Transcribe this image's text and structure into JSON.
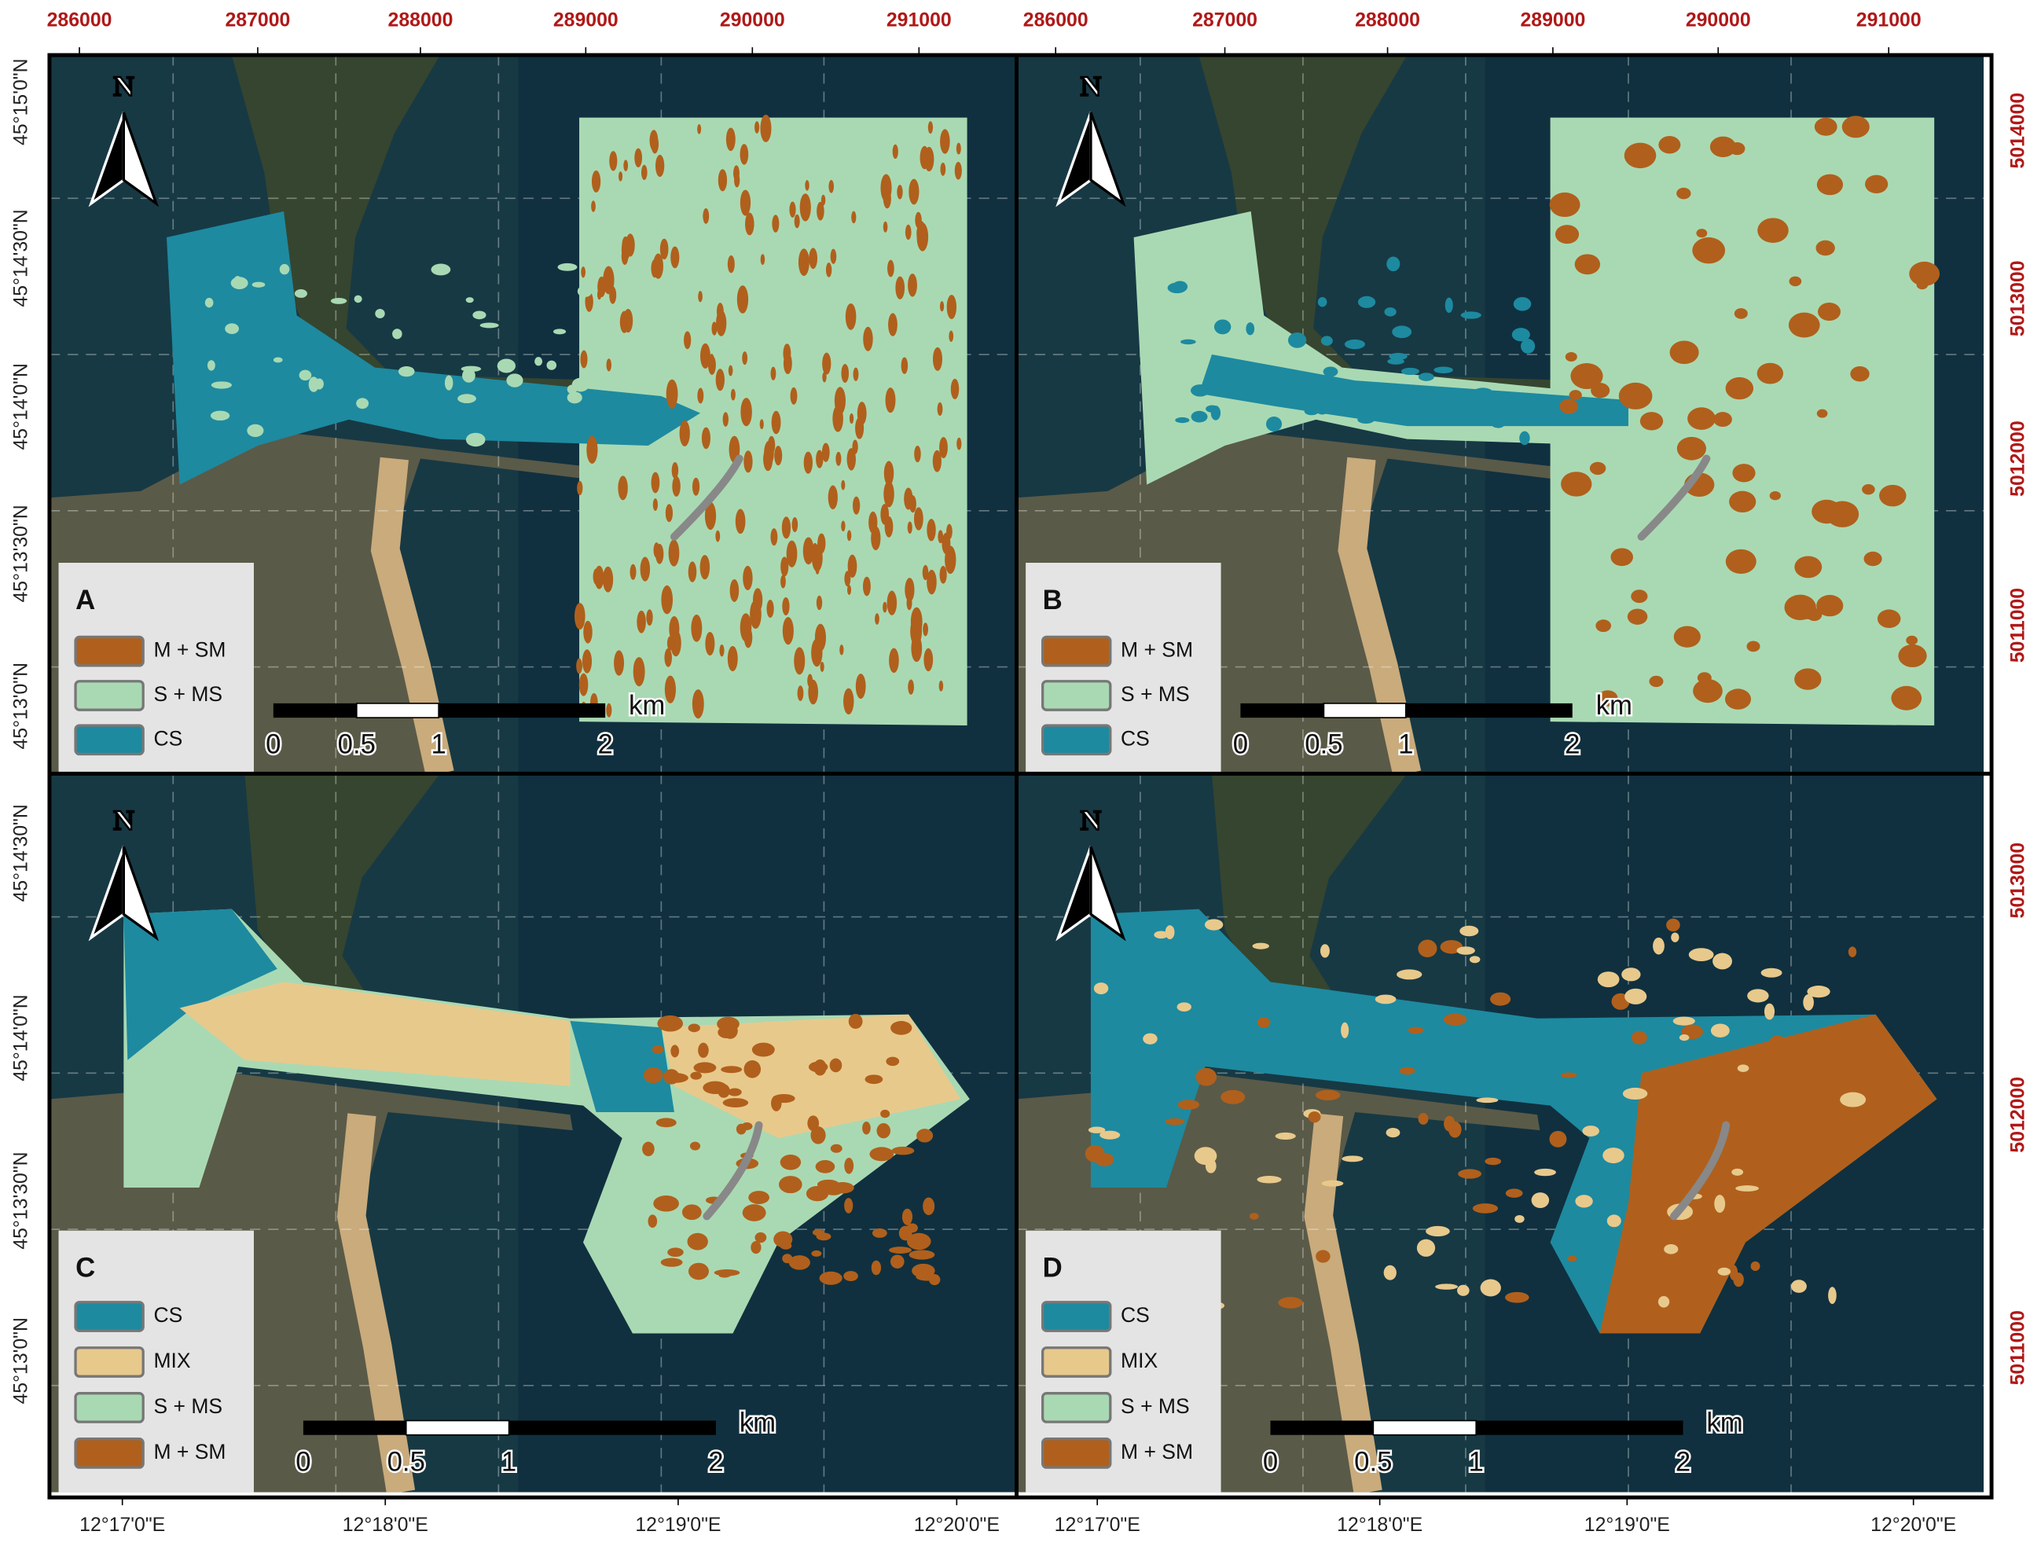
{
  "axis_labels": {
    "top_left": [
      "286000",
      "287000",
      "288000",
      "289000",
      "290000",
      "291000"
    ],
    "top_right": [
      "286000",
      "287000",
      "288000",
      "289000",
      "290000",
      "291000"
    ],
    "left_upper": [
      "45°15'0\"N",
      "45°14'30\"N",
      "45°14'0\"N",
      "45°13'30\"N",
      "45°13'0\"N"
    ],
    "left_lower": [
      "45°14'30\"N",
      "45°14'0\"N",
      "45°13'30\"N",
      "45°13'0\"N"
    ],
    "right_upper": [
      "5014000",
      "5013000",
      "5012000",
      "5011000"
    ],
    "right_lower": [
      "5013000",
      "5012000",
      "5011000"
    ],
    "bottom_left": [
      "12°17'0\"E",
      "12°18'0\"E",
      "12°19'0\"E",
      "12°20'0\"E"
    ],
    "bottom_right": [
      "12°17'0\"E",
      "12°18'0\"E",
      "12°19'0\"E",
      "12°20'0\"E"
    ]
  },
  "panels": [
    {
      "letter": "A",
      "north": "N",
      "scale_ticks": [
        "0",
        "0.5",
        "1",
        "2"
      ],
      "scale_unit": "km",
      "legend": [
        {
          "label": "M + SM",
          "color": "#b0601c"
        },
        {
          "label": "S + MS",
          "color": "#a9d9b3"
        },
        {
          "label": "CS",
          "color": "#1d8aa0"
        }
      ]
    },
    {
      "letter": "B",
      "north": "N",
      "scale_ticks": [
        "0",
        "0.5",
        "1",
        "2"
      ],
      "scale_unit": "km",
      "legend": [
        {
          "label": "M + SM",
          "color": "#b0601c"
        },
        {
          "label": "S + MS",
          "color": "#a9d9b3"
        },
        {
          "label": "CS",
          "color": "#1d8aa0"
        }
      ]
    },
    {
      "letter": "C",
      "north": "N",
      "scale_ticks": [
        "0",
        "0.5",
        "1",
        "2"
      ],
      "scale_unit": "km",
      "legend": [
        {
          "label": "CS",
          "color": "#1d8aa0"
        },
        {
          "label": "MIX",
          "color": "#e8c98c"
        },
        {
          "label": "S + MS",
          "color": "#a9d9b3"
        },
        {
          "label": "M + SM",
          "color": "#b0601c"
        }
      ]
    },
    {
      "letter": "D",
      "north": "N",
      "scale_ticks": [
        "0",
        "0.5",
        "1",
        "2"
      ],
      "scale_unit": "km",
      "legend": [
        {
          "label": "CS",
          "color": "#1d8aa0"
        },
        {
          "label": "MIX",
          "color": "#e8c98c"
        },
        {
          "label": "S + MS",
          "color": "#a9d9b3"
        },
        {
          "label": "M + SM",
          "color": "#b0601c"
        }
      ]
    }
  ]
}
